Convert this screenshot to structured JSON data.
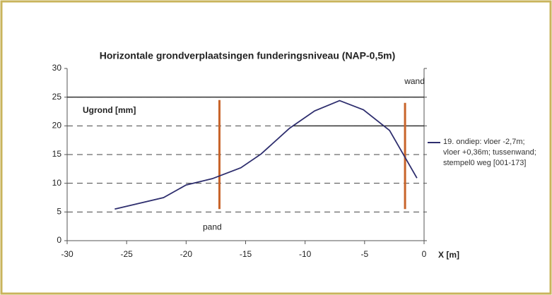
{
  "chart_data": {
    "type": "line",
    "title": "Horizontale grondverplaatsingen funderingsniveau (NAP-0,5m)",
    "y_label": "Ugrond [mm]",
    "x_label": "X [m]",
    "x": [
      -26,
      -21.9,
      -20,
      -17.8,
      -15.4,
      -13.7,
      -11.3,
      -9.2,
      -7.1,
      -5.1,
      -2.9,
      -0.6
    ],
    "series": [
      {
        "name": "19. ondiep: vloer -2,7m; vloer +0,36m; tussenwand; stempel0 weg [001-173]",
        "color": "#2e2e6e",
        "values": [
          5.5,
          7.5,
          9.7,
          10.8,
          12.7,
          15.1,
          19.6,
          22.6,
          24.4,
          22.8,
          19.2,
          10.9
        ]
      }
    ],
    "xlim": [
      -30,
      0
    ],
    "xticks": [
      -30,
      -25,
      -20,
      -15,
      -10,
      -5,
      0
    ],
    "ylim": [
      0,
      30
    ],
    "yticks": [
      0,
      5,
      10,
      15,
      20,
      25,
      30
    ],
    "grid": true,
    "reference_lines": [
      {
        "y": 25,
        "x": [
          -30,
          0
        ]
      },
      {
        "y": 20,
        "x": [
          -11,
          0
        ]
      }
    ],
    "markers": [
      {
        "x": -17.2,
        "y": [
          5.5,
          24.5
        ],
        "color": "#c8642a"
      },
      {
        "x": -1.6,
        "y": [
          5.5,
          24
        ],
        "color": "#c8642a"
      }
    ],
    "annotations": [
      {
        "text": "wand",
        "x": -0.8,
        "y": 27.7
      },
      {
        "text": "pand",
        "x": -17.8,
        "y": 2.3
      }
    ]
  }
}
